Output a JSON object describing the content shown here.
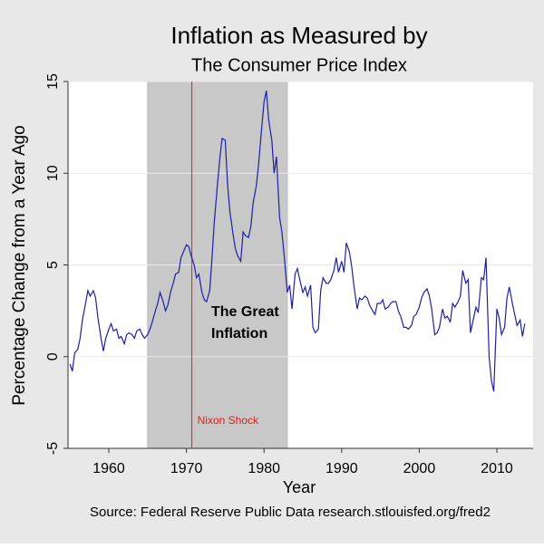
{
  "chart_data": {
    "type": "line",
    "title": "Inflation as Measured by",
    "subtitle": "The Consumer Price Index",
    "x_label": "Year",
    "y_label": "Percentage Change from a Year Ago",
    "source": "Source: Federal Reserve Public Data research.stlouisfed.org/fred2",
    "annotations": [
      "The Great",
      "Inflation",
      "Nixon Shock"
    ],
    "shade": [
      1965,
      1983
    ],
    "vline": 1970.7,
    "xlim": [
      1954.74,
      2014.67
    ],
    "ylim": [
      -5,
      15
    ],
    "xticks": [
      1960,
      1970,
      1980,
      1990,
      2000,
      2010
    ],
    "yticks": [
      -5,
      0,
      5,
      10,
      15
    ],
    "grid": true,
    "x": [
      1955,
      1955.3,
      1955.6,
      1956,
      1956.3,
      1956.6,
      1957,
      1957.3,
      1957.6,
      1958,
      1958.3,
      1958.6,
      1959,
      1959.3,
      1959.6,
      1960,
      1960.3,
      1960.6,
      1961,
      1961.3,
      1961.6,
      1962,
      1962.3,
      1962.6,
      1963,
      1963.3,
      1963.6,
      1964,
      1964.3,
      1964.6,
      1965,
      1965.3,
      1965.6,
      1966,
      1966.3,
      1966.6,
      1967,
      1967.3,
      1967.6,
      1968,
      1968.3,
      1968.6,
      1969,
      1969.3,
      1969.6,
      1970,
      1970.3,
      1970.6,
      1971,
      1971.3,
      1971.6,
      1972,
      1972.3,
      1972.6,
      1973,
      1973.3,
      1973.6,
      1974,
      1974.3,
      1974.6,
      1975,
      1975.3,
      1975.6,
      1976,
      1976.3,
      1976.6,
      1977,
      1977.3,
      1977.6,
      1978,
      1978.3,
      1978.6,
      1979,
      1979.3,
      1979.6,
      1980,
      1980.3,
      1980.6,
      1981,
      1981.3,
      1981.6,
      1982,
      1982.3,
      1982.6,
      1983,
      1983.3,
      1983.6,
      1984,
      1984.3,
      1984.6,
      1985,
      1985.3,
      1985.6,
      1986,
      1986.3,
      1986.6,
      1987,
      1987.3,
      1987.6,
      1988,
      1988.3,
      1988.6,
      1989,
      1989.3,
      1989.6,
      1990,
      1990.3,
      1990.6,
      1991,
      1991.3,
      1991.6,
      1992,
      1992.3,
      1992.6,
      1993,
      1993.3,
      1993.6,
      1994,
      1994.3,
      1994.6,
      1995,
      1995.3,
      1995.6,
      1996,
      1996.3,
      1996.6,
      1997,
      1997.3,
      1997.6,
      1998,
      1998.3,
      1998.6,
      1999,
      1999.3,
      1999.6,
      2000,
      2000.3,
      2000.6,
      2001,
      2001.3,
      2001.6,
      2002,
      2002.3,
      2002.6,
      2003,
      2003.3,
      2003.6,
      2004,
      2004.3,
      2004.6,
      2005,
      2005.3,
      2005.6,
      2006,
      2006.3,
      2006.6,
      2007,
      2007.3,
      2007.6,
      2008,
      2008.3,
      2008.6,
      2009,
      2009.3,
      2009.6,
      2010,
      2010.3,
      2010.6,
      2011,
      2011.3,
      2011.6,
      2012,
      2012.3,
      2012.6,
      2013,
      2013.3,
      2013.6
    ],
    "series": [
      {
        "color": "#1f1fa8",
        "values": [
          -0.4,
          -0.8,
          0.2,
          0.4,
          1.0,
          2.0,
          2.9,
          3.6,
          3.3,
          3.6,
          3.2,
          2.1,
          1.0,
          0.3,
          1.0,
          1.5,
          1.8,
          1.4,
          1.5,
          1.0,
          1.1,
          0.7,
          1.2,
          1.3,
          1.2,
          1.0,
          1.4,
          1.5,
          1.2,
          1.0,
          1.2,
          1.5,
          1.9,
          2.5,
          2.9,
          3.5,
          3.0,
          2.5,
          2.8,
          3.6,
          4.0,
          4.5,
          4.6,
          5.4,
          5.7,
          6.1,
          6.0,
          5.5,
          5.0,
          4.3,
          4.5,
          3.5,
          3.1,
          3.0,
          3.6,
          5.4,
          7.4,
          9.4,
          10.8,
          11.9,
          11.8,
          9.4,
          7.9,
          6.7,
          5.9,
          5.5,
          5.2,
          6.8,
          6.6,
          6.5,
          7.1,
          8.4,
          9.3,
          10.5,
          12.0,
          13.9,
          14.5,
          12.9,
          11.8,
          10.0,
          10.9,
          7.6,
          6.8,
          5.5,
          3.5,
          3.9,
          2.6,
          4.5,
          4.8,
          4.2,
          3.5,
          3.8,
          3.3,
          3.9,
          1.6,
          1.3,
          1.5,
          3.6,
          4.3,
          4.0,
          4.0,
          4.2,
          4.7,
          5.4,
          4.6,
          5.2,
          4.6,
          6.2,
          5.7,
          4.9,
          3.8,
          2.6,
          3.2,
          3.1,
          3.3,
          3.2,
          2.8,
          2.5,
          2.3,
          2.9,
          2.9,
          3.1,
          2.6,
          2.7,
          2.9,
          3.0,
          3.0,
          2.5,
          2.2,
          1.6,
          1.6,
          1.5,
          1.7,
          2.2,
          2.3,
          2.7,
          3.2,
          3.5,
          3.7,
          3.3,
          2.6,
          1.2,
          1.3,
          1.6,
          2.6,
          2.1,
          2.2,
          1.9,
          2.9,
          2.7,
          3.0,
          3.3,
          4.7,
          4.0,
          4.2,
          1.3,
          2.1,
          2.7,
          2.4,
          4.3,
          4.2,
          5.4,
          0.0,
          -1.3,
          -1.9,
          2.6,
          2.1,
          1.2,
          1.6,
          3.2,
          3.8,
          2.9,
          2.3,
          1.7,
          2.0,
          1.1,
          1.8
        ]
      }
    ]
  }
}
